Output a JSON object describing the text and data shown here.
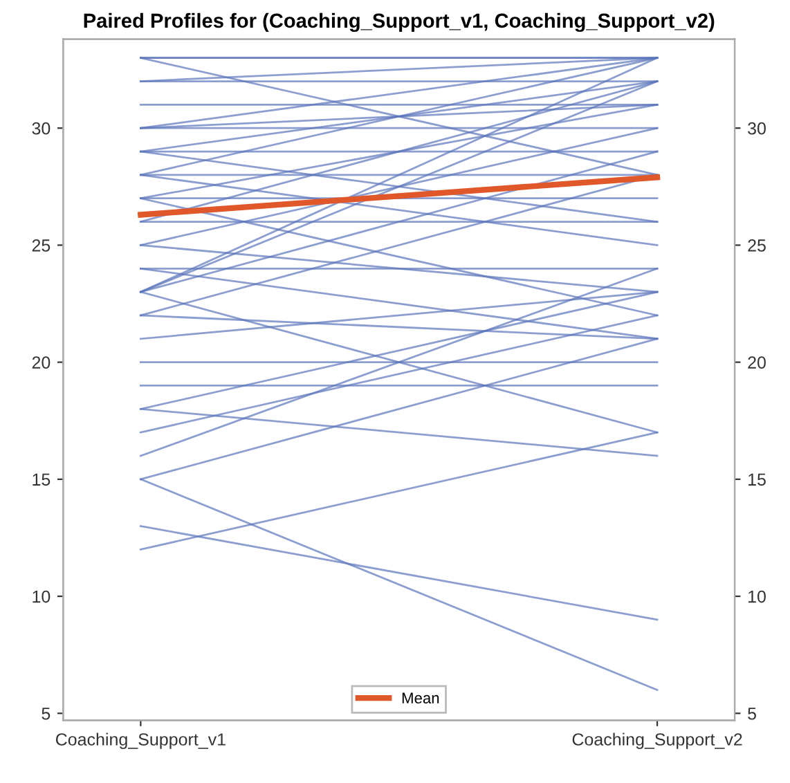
{
  "chart_data": {
    "type": "line",
    "title": "Paired Profiles for (Coaching_Support_v1, Coaching_Support_v2)",
    "categories": [
      "Coaching_Support_v1",
      "Coaching_Support_v2"
    ],
    "ylim": [
      4.7,
      33.8
    ],
    "yticks": [
      5,
      10,
      15,
      20,
      25,
      30
    ],
    "y2lim": [
      4.7,
      33.8
    ],
    "y2ticks": [
      5,
      10,
      15,
      20,
      25,
      30
    ],
    "grid": false,
    "legend": "bottom",
    "marker": "none",
    "line_style": "solid",
    "series": [
      {
        "color": "#5b75bb",
        "values": [
          33,
          33
        ]
      },
      {
        "color": "#5b75bb",
        "values": [
          33,
          33
        ]
      },
      {
        "color": "#5b75bb",
        "values": [
          33,
          28
        ]
      },
      {
        "color": "#5b75bb",
        "values": [
          32,
          32
        ]
      },
      {
        "color": "#5b75bb",
        "values": [
          32,
          33
        ]
      },
      {
        "color": "#5b75bb",
        "values": [
          31,
          31
        ]
      },
      {
        "color": "#5b75bb",
        "values": [
          30,
          30
        ]
      },
      {
        "color": "#5b75bb",
        "values": [
          30,
          33
        ]
      },
      {
        "color": "#5b75bb",
        "values": [
          30,
          31
        ]
      },
      {
        "color": "#5b75bb",
        "values": [
          29,
          29
        ]
      },
      {
        "color": "#5b75bb",
        "values": [
          29,
          32
        ]
      },
      {
        "color": "#5b75bb",
        "values": [
          29,
          26
        ]
      },
      {
        "color": "#5b75bb",
        "values": [
          28,
          28
        ]
      },
      {
        "color": "#5b75bb",
        "values": [
          28,
          33
        ]
      },
      {
        "color": "#5b75bb",
        "values": [
          28,
          25
        ]
      },
      {
        "color": "#5b75bb",
        "values": [
          27,
          27
        ]
      },
      {
        "color": "#5b75bb",
        "values": [
          27,
          31
        ]
      },
      {
        "color": "#5b75bb",
        "values": [
          27,
          22
        ]
      },
      {
        "color": "#5b75bb",
        "values": [
          26,
          26
        ]
      },
      {
        "color": "#5b75bb",
        "values": [
          26,
          32
        ]
      },
      {
        "color": "#5b75bb",
        "values": [
          25,
          30
        ]
      },
      {
        "color": "#5b75bb",
        "values": [
          25,
          23
        ]
      },
      {
        "color": "#5b75bb",
        "values": [
          24,
          24
        ]
      },
      {
        "color": "#5b75bb",
        "values": [
          24,
          21
        ]
      },
      {
        "color": "#5b75bb",
        "values": [
          23,
          33
        ]
      },
      {
        "color": "#5b75bb",
        "values": [
          23,
          32
        ]
      },
      {
        "color": "#5b75bb",
        "values": [
          23,
          29
        ]
      },
      {
        "color": "#5b75bb",
        "values": [
          23,
          17
        ]
      },
      {
        "color": "#5b75bb",
        "values": [
          22,
          28
        ]
      },
      {
        "color": "#5b75bb",
        "values": [
          22,
          21
        ]
      },
      {
        "color": "#5b75bb",
        "values": [
          21,
          23
        ]
      },
      {
        "color": "#5b75bb",
        "values": [
          20,
          20
        ]
      },
      {
        "color": "#5b75bb",
        "values": [
          19,
          19
        ]
      },
      {
        "color": "#5b75bb",
        "values": [
          18,
          23
        ]
      },
      {
        "color": "#5b75bb",
        "values": [
          18,
          16
        ]
      },
      {
        "color": "#5b75bb",
        "values": [
          17,
          22
        ]
      },
      {
        "color": "#5b75bb",
        "values": [
          16,
          24
        ]
      },
      {
        "color": "#5b75bb",
        "values": [
          15,
          21
        ]
      },
      {
        "color": "#5b75bb",
        "values": [
          15,
          6
        ]
      },
      {
        "color": "#5b75bb",
        "values": [
          13,
          9
        ]
      },
      {
        "color": "#5b75bb",
        "values": [
          12,
          17
        ]
      },
      {
        "name": "Mean",
        "color": "#e0572a",
        "values": [
          26.3,
          27.9
        ]
      }
    ]
  }
}
